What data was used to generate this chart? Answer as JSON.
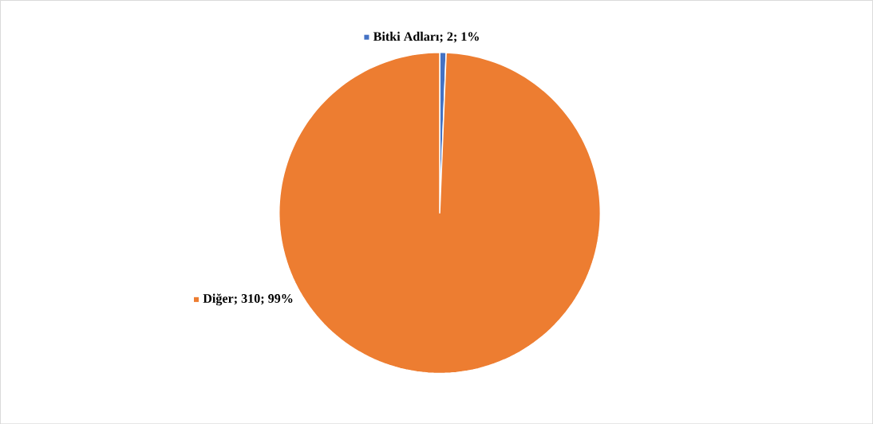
{
  "chart_data": {
    "type": "pie",
    "categories": [
      "Bitki Adları",
      "Diğer"
    ],
    "values": [
      2,
      310
    ],
    "colors": [
      "#4472c4",
      "#ed7d31"
    ],
    "value_labels": [
      "; 2; 1%",
      "; 310; 99%"
    ],
    "legend": "left"
  }
}
